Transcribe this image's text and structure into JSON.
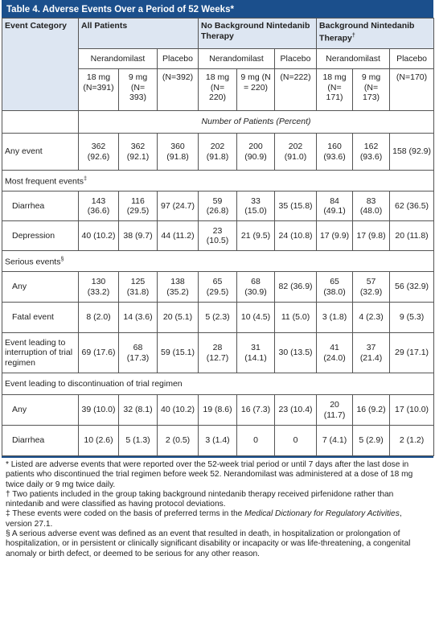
{
  "title": "Table 4. Adverse Events Over a Period of 52 Weeks*",
  "headers": {
    "event_category": "Event Category",
    "all_patients": "All Patients",
    "no_background": "No Background Nintedanib Therapy",
    "background": "Background Nintedanib Therapy",
    "background_mark": "†",
    "nerandomilast": "Nerandomilast",
    "placebo": "Placebo",
    "dose_groups": [
      "18 mg (N=391)",
      "9 mg (N= 393)",
      "(N=392)",
      "18 mg (N= 220)",
      "9 mg (N = 220)",
      "(N=222)",
      "18 mg (N= 171)",
      "9 mg (N= 173)",
      "(N=170)"
    ],
    "number_of_patients": "Number of Patients (Percent)"
  },
  "any_event": {
    "label": "Any event",
    "values": [
      "362 (92.6)",
      "362 (92.1)",
      "360 (91.8)",
      "202 (91.8)",
      "200 (90.9)",
      "202 (91.0)",
      "160 (93.6)",
      "162 (93.6)",
      "158 (92.9)"
    ]
  },
  "frequent": {
    "label": "Most frequent events",
    "mark": "‡",
    "rows": [
      {
        "label": "Diarrhea",
        "values": [
          "143 (36.6)",
          "116 (29.5)",
          "97 (24.7)",
          "59 (26.8)",
          "33 (15.0)",
          "35 (15.8)",
          "84 (49.1)",
          "83 (48.0)",
          "62 (36.5)"
        ]
      },
      {
        "label": "Depression",
        "values": [
          "40 (10.2)",
          "38 (9.7)",
          "44 (11.2)",
          "23 (10.5)",
          "21 (9.5)",
          "24 (10.8)",
          "17 (9.9)",
          "17 (9.8)",
          "20 (11.8)"
        ]
      }
    ]
  },
  "serious": {
    "label": "Serious events",
    "mark": "§",
    "rows": [
      {
        "label": "Any",
        "values": [
          "130 (33.2)",
          "125 (31.8)",
          "138 (35.2)",
          "65 (29.5)",
          "68 (30.9)",
          "82 (36.9)",
          "65 (38.0)",
          "57 (32.9)",
          "56 (32.9)"
        ]
      },
      {
        "label": "Fatal event",
        "values": [
          "8 (2.0)",
          "14 (3.6)",
          "20 (5.1)",
          "5 (2.3)",
          "10 (4.5)",
          "11 (5.0)",
          "3 (1.8)",
          "4 (2.3)",
          "9 (5.3)"
        ]
      }
    ]
  },
  "interruption": {
    "label": "Event leading to interruption of trial regimen",
    "values": [
      "69 (17.6)",
      "68 (17.3)",
      "59 (15.1)",
      "28 (12.7)",
      "31 (14.1)",
      "30 (13.5)",
      "41 (24.0)",
      "37 (21.4)",
      "29 (17.1)"
    ]
  },
  "discontinuation": {
    "label": "Event leading to discontinuation of trial regimen",
    "rows": [
      {
        "label": "Any",
        "values": [
          "39 (10.0)",
          "32 (8.1)",
          "40 (10.2)",
          "19 (8.6)",
          "16 (7.3)",
          "23 (10.4)",
          "20 (11.7)",
          "16 (9.2)",
          "17 (10.0)"
        ]
      },
      {
        "label": "Diarrhea",
        "values": [
          "10 (2.6)",
          "5 (1.3)",
          "2 (0.5)",
          "3 (1.4)",
          "0",
          "0",
          "7 (4.1)",
          "5 (2.9)",
          "2 (1.2)"
        ]
      }
    ]
  },
  "footnotes": {
    "star": "* Listed are adverse events that were reported over the 52-week trial period or until 7 days after the last dose in patients who discontinued the trial regimen before week 52. Nerandomilast was administered at a dose of 18 mg twice daily or 9 mg twice daily.",
    "dagger": "† Two patients included in the group taking background nintedanib therapy received pirfenidone rather than nintedanib and were classified as having protocol deviations.",
    "ddagger_pre": "‡ These events were coded on the basis of preferred terms in the ",
    "ddagger_em": "Medical Dictionary for Regulatory Activities",
    "ddagger_post": ", version 27.1.",
    "section": "§ A serious adverse event was defined as an event that resulted in death, in hospitalization or prolongation of hospitalization, or in persistent or clinically significant disability or incapacity or was life-threatening, a congenital anomaly or birth defect, or deemed to be serious for any other reason."
  },
  "colors": {
    "title_bg": "#1b4f8c",
    "shade": "#dde6f2"
  }
}
